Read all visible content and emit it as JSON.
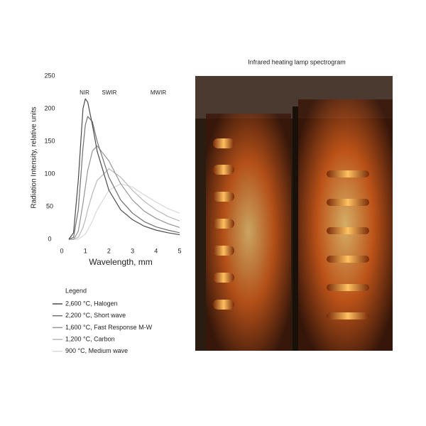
{
  "chart_data": {
    "type": "line",
    "title": "Infrared heating lamp spectrogram",
    "y_label": "Radiation Intensity, relative units",
    "x_label": "Wavelength, mm",
    "band_labels": [
      "NIR",
      "SWIR",
      "MWIR"
    ],
    "legend_title": "Legend",
    "x": [
      0.3,
      0.5,
      0.7,
      0.9,
      1.0,
      1.1,
      1.3,
      1.5,
      2,
      2.5,
      3,
      3.5,
      4,
      4.5,
      5
    ],
    "series": [
      {
        "name": "2,600 °C, Halogen",
        "color": "#4a4a4a",
        "values": [
          0,
          10,
          90,
          200,
          215,
          210,
          175,
          135,
          75,
          45,
          30,
          20,
          14,
          10,
          7
        ]
      },
      {
        "name": "2,200 °C, Short wave",
        "color": "#707070",
        "values": [
          0,
          3,
          45,
          140,
          175,
          188,
          180,
          150,
          95,
          60,
          40,
          27,
          19,
          14,
          10
        ]
      },
      {
        "name": "1,600 °C, Fast Response M-W",
        "color": "#959595",
        "values": [
          0,
          0,
          12,
          55,
          80,
          105,
          135,
          143,
          120,
          85,
          60,
          43,
          32,
          24,
          18
        ]
      },
      {
        "name": "1,200 °C, Carbon",
        "color": "#b8b8b8",
        "values": [
          0,
          0,
          3,
          18,
          30,
          45,
          70,
          90,
          108,
          95,
          75,
          58,
          45,
          35,
          28
        ]
      },
      {
        "name": "900 °C, Medium wave",
        "color": "#d8d8d8",
        "values": [
          0,
          0,
          0,
          5,
          8,
          14,
          28,
          45,
          75,
          85,
          80,
          68,
          57,
          47,
          40
        ]
      }
    ],
    "xlim": [
      0,
      5
    ],
    "xticks": [
      0,
      1,
      2,
      3,
      4,
      5
    ],
    "ylim": [
      0,
      250
    ],
    "yticks": [
      0,
      50,
      100,
      150,
      200,
      250
    ],
    "grid": false
  }
}
